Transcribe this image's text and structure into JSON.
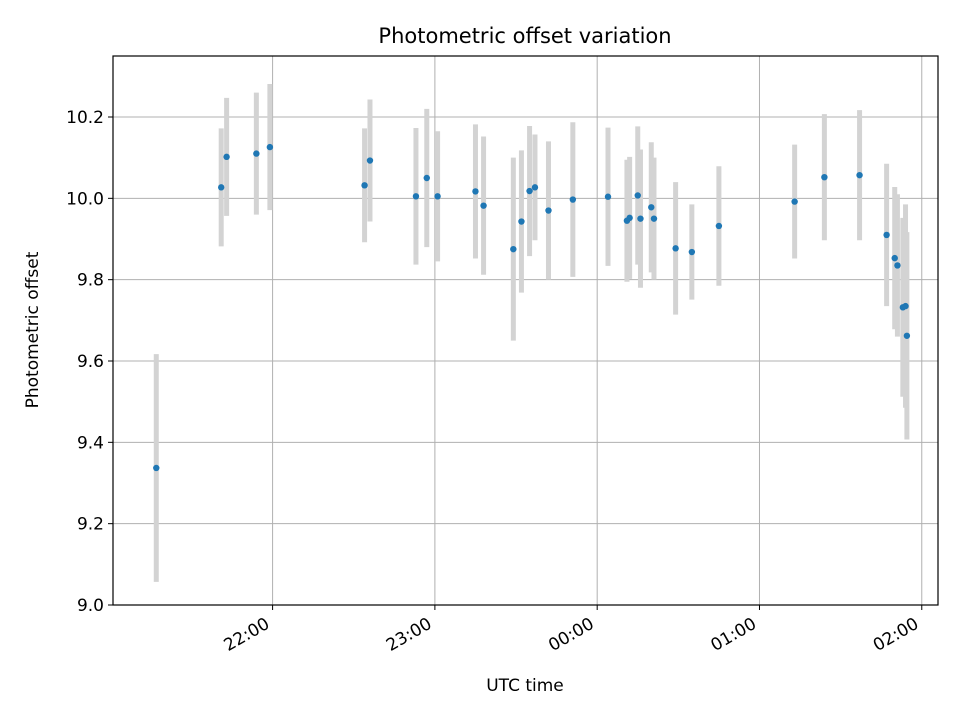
{
  "chart_data": {
    "type": "scatter",
    "title": "Photometric offset variation",
    "xlabel": "UTC time",
    "ylabel": "Photometric offset",
    "xlim": [
      "21:01",
      "02:06"
    ],
    "ylim": [
      9.0,
      10.35
    ],
    "grid": true,
    "x_ticks": [
      "22:00",
      "23:00",
      "00:00",
      "01:00",
      "02:00"
    ],
    "y_ticks": [
      "9.0",
      "9.2",
      "9.4",
      "9.6",
      "9.8",
      "10.0",
      "10.2"
    ],
    "colors": {
      "points": "#1f77b4",
      "errorbars": "#d3d3d3",
      "grid": "#b0b0b0"
    },
    "points": [
      {
        "time": "21:17",
        "y": 9.337,
        "err": 0.28
      },
      {
        "time": "21:41",
        "y": 10.027,
        "err": 0.145
      },
      {
        "time": "21:43",
        "y": 10.102,
        "err": 0.145
      },
      {
        "time": "21:54",
        "y": 10.11,
        "err": 0.15
      },
      {
        "time": "21:59",
        "y": 10.126,
        "err": 0.155
      },
      {
        "time": "22:34",
        "y": 10.032,
        "err": 0.14
      },
      {
        "time": "22:36",
        "y": 10.093,
        "err": 0.15
      },
      {
        "time": "22:53",
        "y": 10.005,
        "err": 0.168
      },
      {
        "time": "22:57",
        "y": 10.05,
        "err": 0.17
      },
      {
        "time": "23:01",
        "y": 10.005,
        "err": 0.16
      },
      {
        "time": "23:15",
        "y": 10.017,
        "err": 0.165
      },
      {
        "time": "23:18",
        "y": 9.982,
        "err": 0.17
      },
      {
        "time": "23:29",
        "y": 9.875,
        "err": 0.225
      },
      {
        "time": "23:32",
        "y": 9.943,
        "err": 0.175
      },
      {
        "time": "23:35",
        "y": 10.018,
        "err": 0.16
      },
      {
        "time": "23:37",
        "y": 10.027,
        "err": 0.13
      },
      {
        "time": "23:42",
        "y": 9.97,
        "err": 0.17
      },
      {
        "time": "23:51",
        "y": 9.997,
        "err": 0.19
      },
      {
        "time": "00:04",
        "y": 10.004,
        "err": 0.17
      },
      {
        "time": "00:11",
        "y": 9.945,
        "err": 0.15
      },
      {
        "time": "00:12",
        "y": 9.952,
        "err": 0.15
      },
      {
        "time": "00:15",
        "y": 10.007,
        "err": 0.17
      },
      {
        "time": "00:16",
        "y": 9.95,
        "err": 0.17
      },
      {
        "time": "00:20",
        "y": 9.978,
        "err": 0.16
      },
      {
        "time": "00:21",
        "y": 9.95,
        "err": 0.15
      },
      {
        "time": "00:29",
        "y": 9.877,
        "err": 0.163
      },
      {
        "time": "00:35",
        "y": 9.868,
        "err": 0.117
      },
      {
        "time": "00:45",
        "y": 9.932,
        "err": 0.147
      },
      {
        "time": "01:13",
        "y": 9.992,
        "err": 0.14
      },
      {
        "time": "01:24",
        "y": 10.052,
        "err": 0.155
      },
      {
        "time": "01:37",
        "y": 10.057,
        "err": 0.16
      },
      {
        "time": "01:47",
        "y": 9.91,
        "err": 0.175
      },
      {
        "time": "01:50",
        "y": 9.853,
        "err": 0.175
      },
      {
        "time": "01:51",
        "y": 9.835,
        "err": 0.175
      },
      {
        "time": "01:53",
        "y": 9.732,
        "err": 0.22
      },
      {
        "time": "01:54",
        "y": 9.735,
        "err": 0.25
      },
      {
        "time": "01:54:30",
        "y": 9.662,
        "err": 0.255
      }
    ]
  }
}
